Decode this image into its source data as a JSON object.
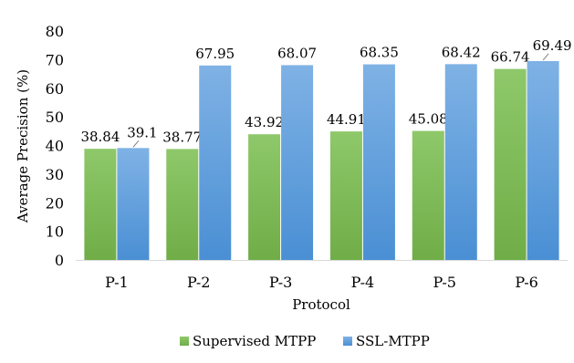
{
  "chart_data": {
    "type": "bar",
    "title": "",
    "xlabel": "Protocol",
    "ylabel": "Average Precision (%)",
    "ylim": [
      0,
      80
    ],
    "yticks": [
      0,
      10,
      20,
      30,
      40,
      50,
      60,
      70,
      80
    ],
    "categories": [
      "P-1",
      "P-2",
      "P-3",
      "P-4",
      "P-5",
      "P-6"
    ],
    "series": [
      {
        "name": "Supervised MTPP",
        "values": [
          38.84,
          38.77,
          43.92,
          44.91,
          45.08,
          66.74
        ],
        "labels": [
          "38.84",
          "38.77",
          "43.92",
          "44.91",
          "45.08",
          "66.74"
        ],
        "color": "#70ad47",
        "color_light": "#8ec86a"
      },
      {
        "name": "SSL-MTPP",
        "values": [
          39.1,
          67.95,
          68.07,
          68.35,
          68.42,
          69.49
        ],
        "labels": [
          "39.1",
          "67.95",
          "68.07",
          "68.35",
          "68.42",
          "69.49"
        ],
        "color": "#4a8fd4",
        "color_light": "#7fb2e5"
      }
    ],
    "grid": false,
    "legend": "bottom"
  }
}
